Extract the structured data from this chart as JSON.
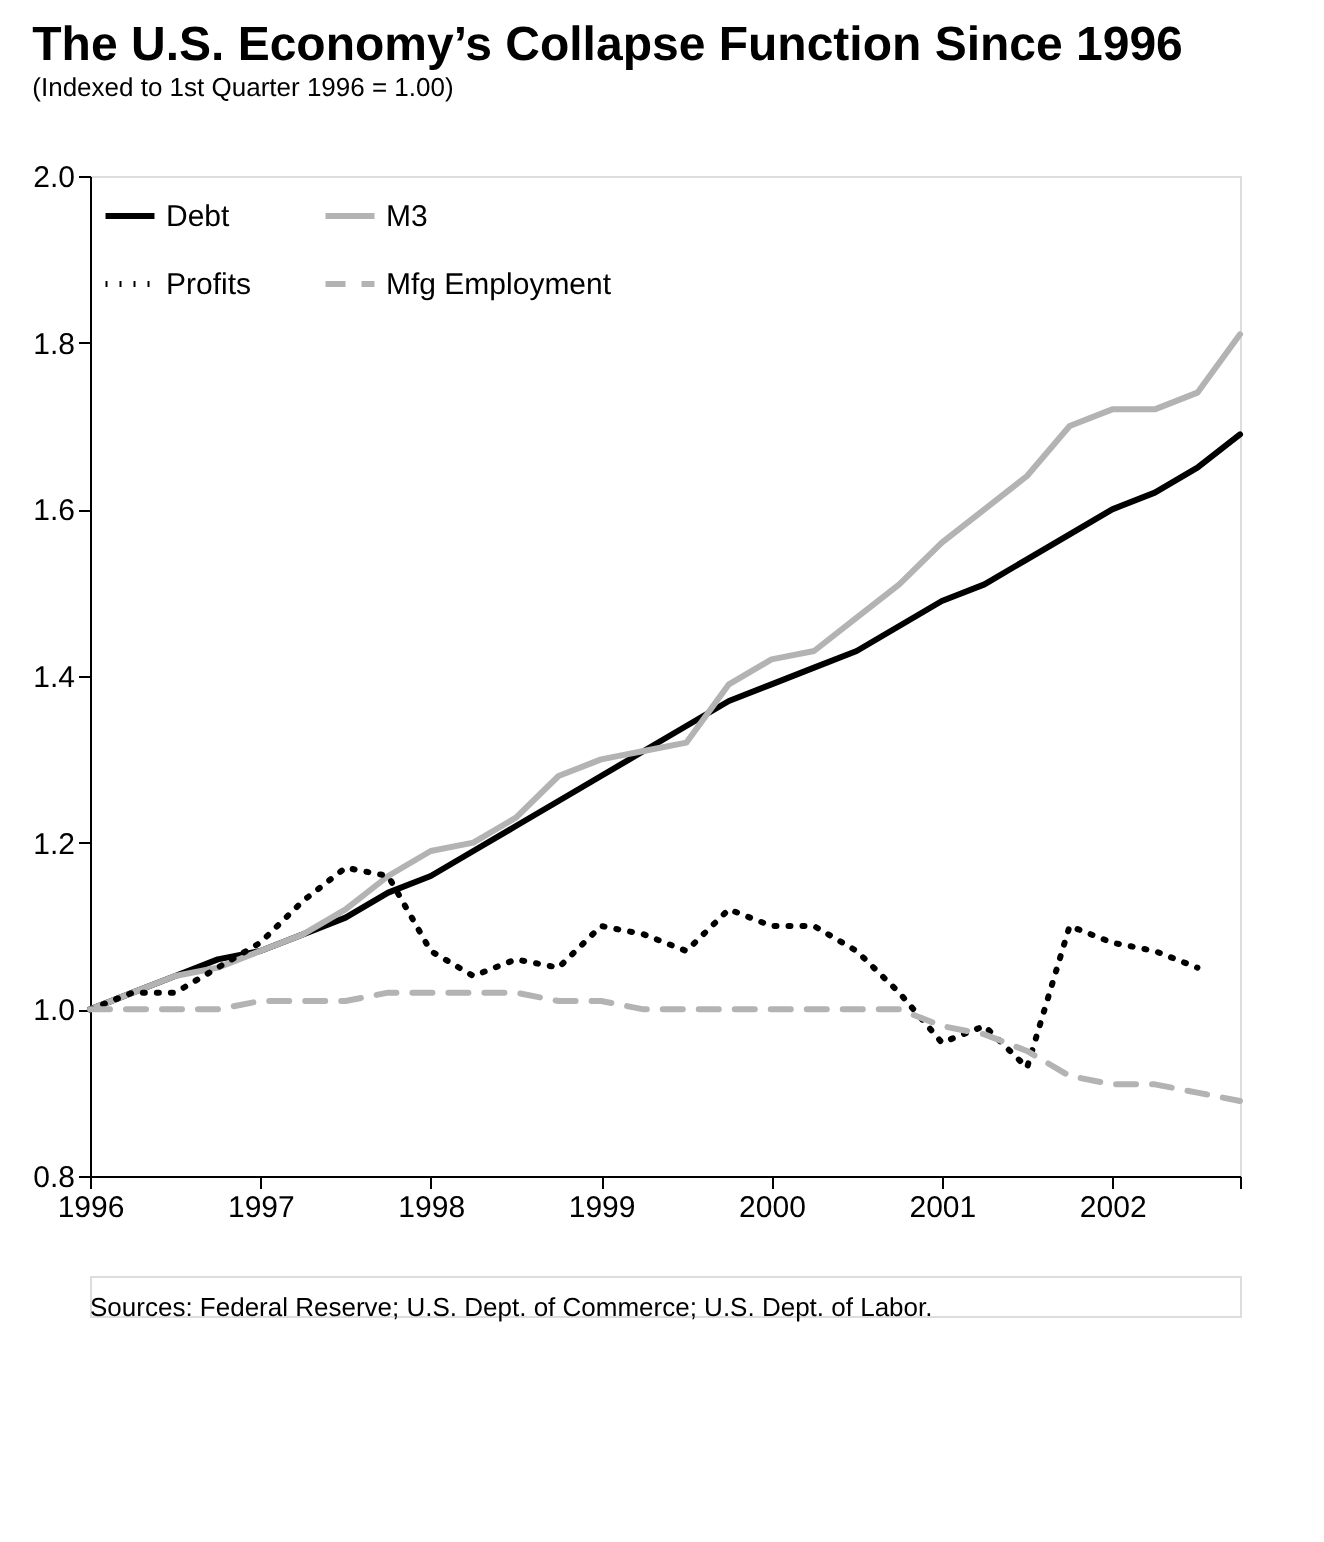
{
  "chart_data": {
    "type": "line",
    "title": "The U.S. Economy’s Collapse Function Since 1996",
    "subtitle": "(Indexed to 1st Quarter 1996 = 1.00)",
    "x": [
      1996,
      1996.25,
      1996.5,
      1996.75,
      1997,
      1997.25,
      1997.5,
      1997.75,
      1998,
      1998.25,
      1998.5,
      1998.75,
      1999,
      1999.25,
      1999.5,
      1999.75,
      2000,
      2000.25,
      2000.5,
      2000.75,
      2001,
      2001.25,
      2001.5,
      2001.75,
      2002,
      2002.25,
      2002.5,
      2002.75
    ],
    "series": [
      {
        "name": "Debt",
        "color": "#000000",
        "line_style": "solid",
        "values": [
          1.0,
          1.02,
          1.04,
          1.06,
          1.07,
          1.09,
          1.11,
          1.14,
          1.16,
          1.19,
          1.22,
          1.25,
          1.28,
          1.31,
          1.34,
          1.37,
          1.39,
          1.41,
          1.43,
          1.46,
          1.49,
          1.51,
          1.54,
          1.57,
          1.6,
          1.62,
          1.65,
          1.69
        ]
      },
      {
        "name": "M3",
        "color": "#b3b3b3",
        "line_style": "solid",
        "values": [
          1.0,
          1.02,
          1.04,
          1.05,
          1.07,
          1.09,
          1.12,
          1.16,
          1.19,
          1.2,
          1.23,
          1.28,
          1.3,
          1.31,
          1.32,
          1.39,
          1.42,
          1.43,
          1.47,
          1.51,
          1.56,
          1.6,
          1.64,
          1.7,
          1.72,
          1.72,
          1.74,
          1.81
        ]
      },
      {
        "name": "Profits",
        "color": "#000000",
        "line_style": "dotted",
        "values": [
          1.0,
          1.02,
          1.02,
          1.05,
          1.08,
          1.13,
          1.17,
          1.16,
          1.07,
          1.04,
          1.06,
          1.05,
          1.1,
          1.09,
          1.07,
          1.12,
          1.1,
          1.1,
          1.07,
          1.02,
          0.96,
          0.98,
          0.93,
          1.1,
          1.08,
          1.07,
          1.05,
          null
        ]
      },
      {
        "name": "Mfg Employment",
        "color": "#b3b3b3",
        "line_style": "dashed",
        "values": [
          1.0,
          1.0,
          1.0,
          1.0,
          1.01,
          1.01,
          1.01,
          1.02,
          1.02,
          1.02,
          1.02,
          1.01,
          1.01,
          1.0,
          1.0,
          1.0,
          1.0,
          1.0,
          1.0,
          1.0,
          0.98,
          0.97,
          0.95,
          0.92,
          0.91,
          0.91,
          0.9,
          0.89
        ]
      }
    ],
    "xlim": [
      1996,
      2002.75
    ],
    "xticks": [
      1996,
      1997,
      1998,
      1999,
      2000,
      2001,
      2002,
      {
        "value": 2002.75,
        "label": null
      }
    ],
    "ylim": [
      0.8,
      2.0
    ],
    "yticks": [
      0.8,
      {
        "value": 1.0,
        "label": "1.0"
      },
      1.2,
      1.4,
      1.6,
      1.8,
      {
        "value": 2.0,
        "label": "2.0"
      }
    ],
    "grid": false,
    "legend": "top left",
    "marker": "none",
    "annotations": [
      "Sources:  Federal Reserve; U.S. Dept. of Commerce; U.S. Dept. of Labor."
    ]
  }
}
